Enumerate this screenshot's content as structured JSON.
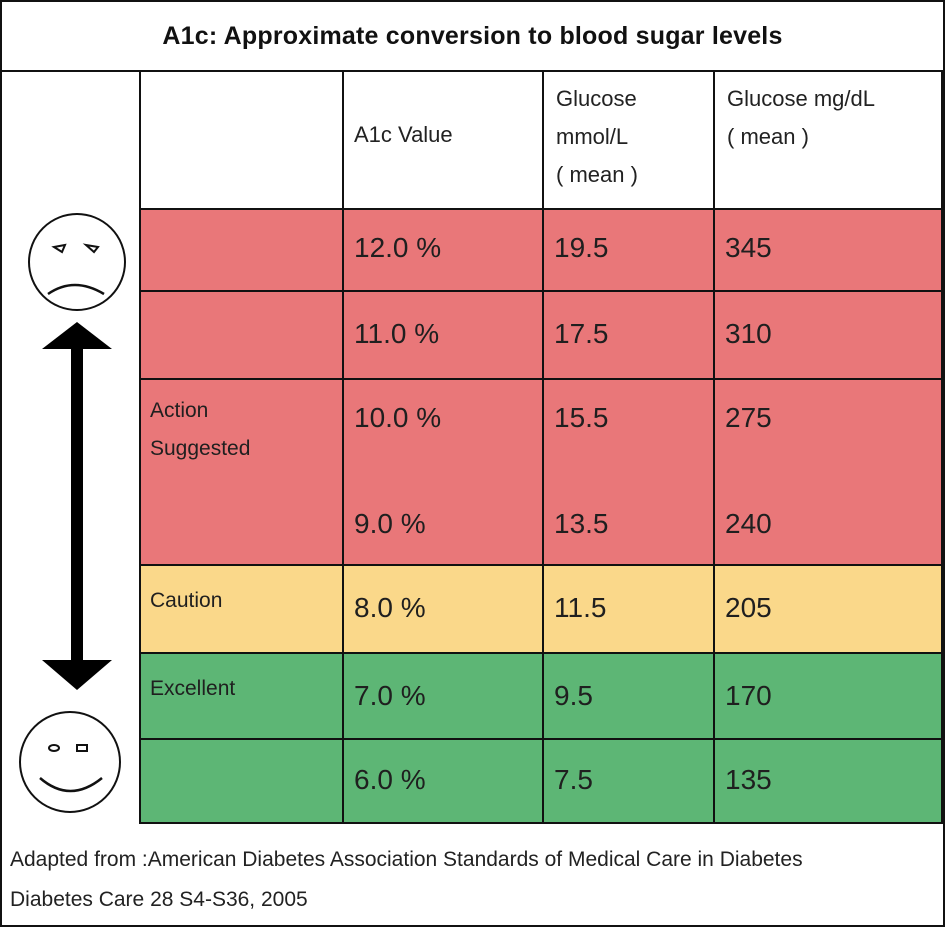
{
  "title": "A1c:  Approximate conversion to blood sugar levels",
  "headers": {
    "category": "",
    "a1c": "A1c Value",
    "mmol_line1": "Glucose",
    "mmol_line2": "mmol/L",
    "mmol_line3": "( mean )",
    "mgdl_line1": "Glucose mg/dL",
    "mgdl_line2": "( mean )"
  },
  "rows": [
    {
      "a1c": "12.0 %",
      "mmol": "19.5",
      "mgdl": "345"
    },
    {
      "a1c": "11.0 %",
      "mmol": "17.5",
      "mgdl": "310"
    },
    {
      "a1c": "10.0 %",
      "mmol": "15.5",
      "mgdl": "275"
    },
    {
      "a1c": "9.0 %",
      "mmol": "13.5",
      "mgdl": "240"
    },
    {
      "a1c": "8.0 %",
      "mmol": "11.5",
      "mgdl": "205"
    },
    {
      "a1c": "7.0 %",
      "mmol": "9.5",
      "mgdl": "170"
    },
    {
      "a1c": "6.0 %",
      "mmol": "7.5",
      "mgdl": "135"
    }
  ],
  "labels": {
    "action_line1": "Action",
    "action_line2": "Suggested",
    "caution": "Caution",
    "excellent": "Excellent"
  },
  "colors": {
    "action": "#e97779",
    "caution": "#fad88a",
    "excellent": "#5db675"
  },
  "icons": {
    "top": "sad-face-icon",
    "arrow": "double-headed-arrow-icon",
    "bottom": "happy-face-icon"
  },
  "footer": {
    "line1": "Adapted from :American Diabetes Association Standards of Medical Care in Diabetes",
    "line2": "Diabetes Care 28 S4-S36, 2005"
  }
}
